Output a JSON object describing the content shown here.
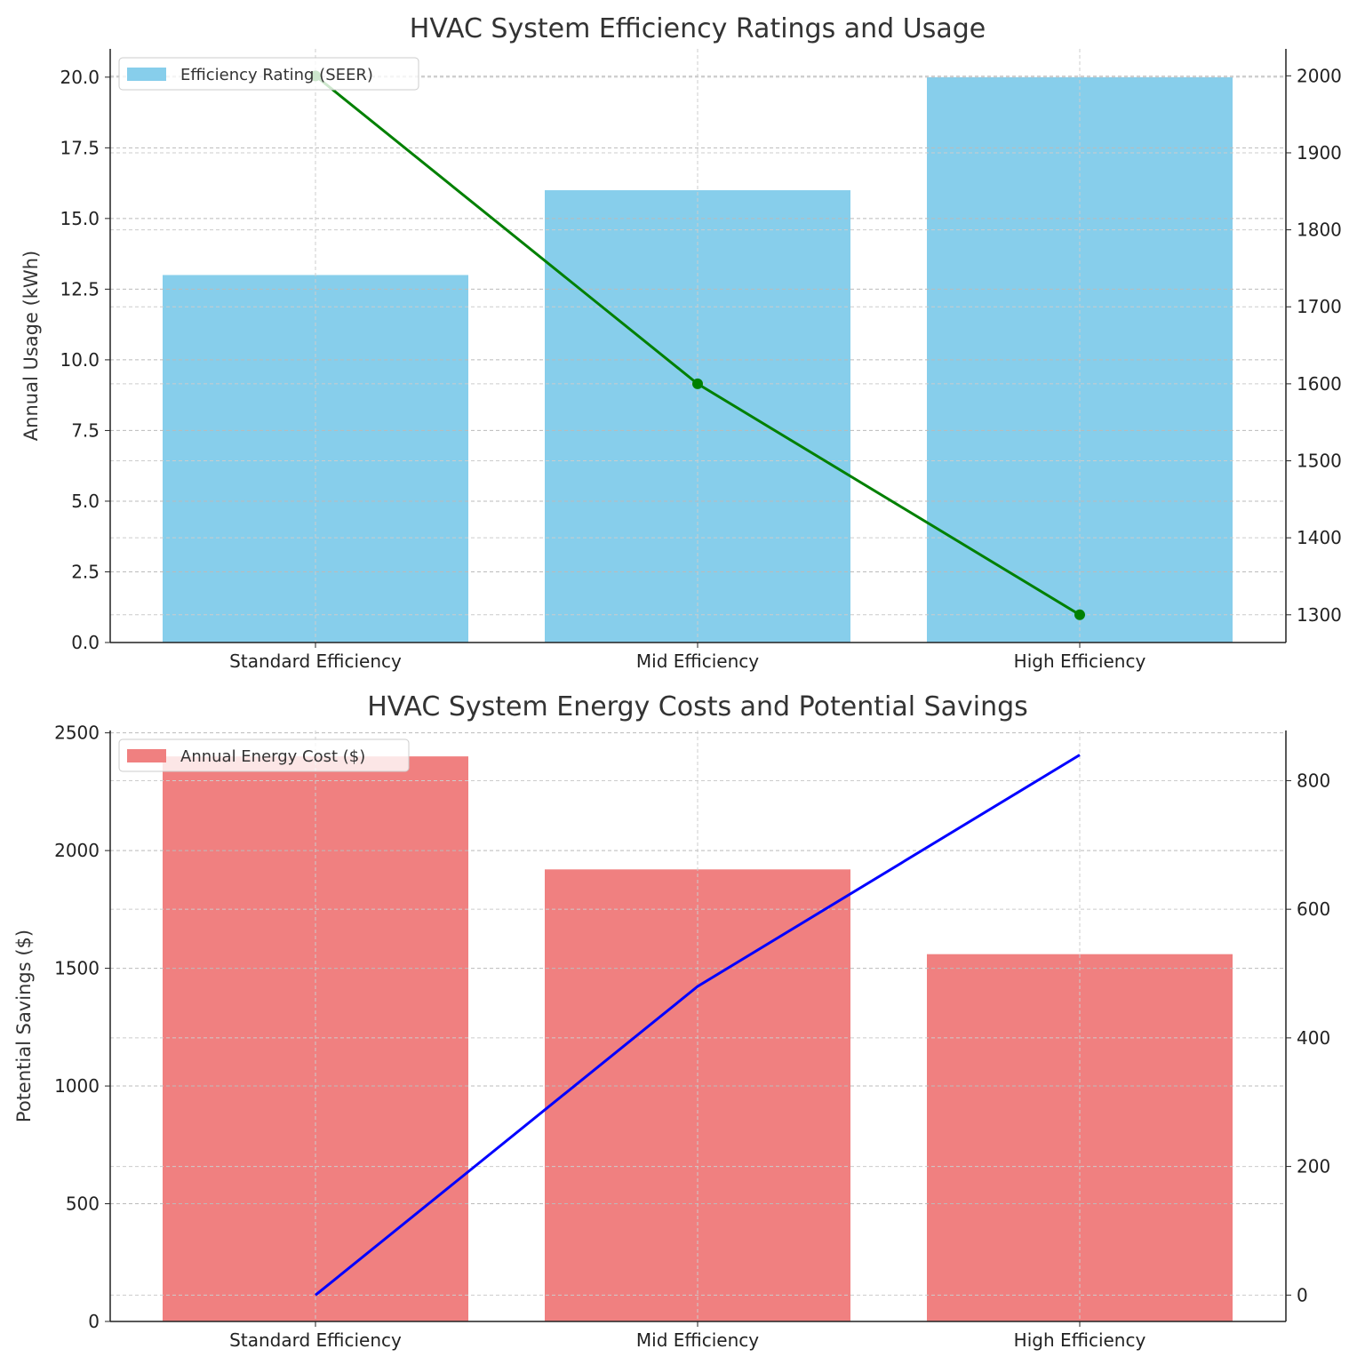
{
  "chart_data": [
    {
      "type": "bar+line",
      "title": "HVAC System Efficiency Ratings and Usage",
      "categories": [
        "Standard Efficiency",
        "Mid Efficiency",
        "High Efficiency"
      ],
      "ylabel": "Annual Usage (kWh)",
      "ylim": [
        0,
        21
      ],
      "yticks": [
        0,
        2.5,
        5,
        7.5,
        10,
        12.5,
        15,
        17.5,
        20
      ],
      "ytick_labels": [
        "0.0",
        "2.5",
        "5.0",
        "7.5",
        "10.0",
        "12.5",
        "15.0",
        "17.5",
        "20.0"
      ],
      "y2lim": [
        1264,
        2035
      ],
      "y2ticks": [
        1300,
        1400,
        1500,
        1600,
        1700,
        1800,
        1900,
        2000
      ],
      "grid": true,
      "legend_position": "top-left",
      "bar_series": {
        "name": "Efficiency Rating (SEER)",
        "values": [
          13,
          16,
          20
        ],
        "color": "#87CEEB"
      },
      "line_series": {
        "values": [
          2000,
          1600,
          1300
        ],
        "color": "#008000",
        "markers": true
      }
    },
    {
      "type": "bar+line",
      "title": "HVAC System Energy Costs and Potential Savings",
      "categories": [
        "Standard Efficiency",
        "Mid Efficiency",
        "High Efficiency"
      ],
      "ylabel": "Potential Savings ($)",
      "ylim": [
        0,
        2510
      ],
      "yticks": [
        0,
        500,
        1000,
        1500,
        2000,
        2500
      ],
      "ytick_labels": [
        "0",
        "500",
        "1000",
        "1500",
        "2000",
        "2500"
      ],
      "y2lim": [
        -41,
        878
      ],
      "y2ticks": [
        0,
        200,
        400,
        600,
        800
      ],
      "grid": true,
      "legend_position": "top-left",
      "bar_series": {
        "name": "Annual Energy Cost ($)",
        "values": [
          2400,
          1920,
          1560
        ],
        "color": "#F08080"
      },
      "line_series": {
        "values": [
          0,
          480,
          840
        ],
        "color": "#0000FF",
        "markers": false
      }
    }
  ]
}
